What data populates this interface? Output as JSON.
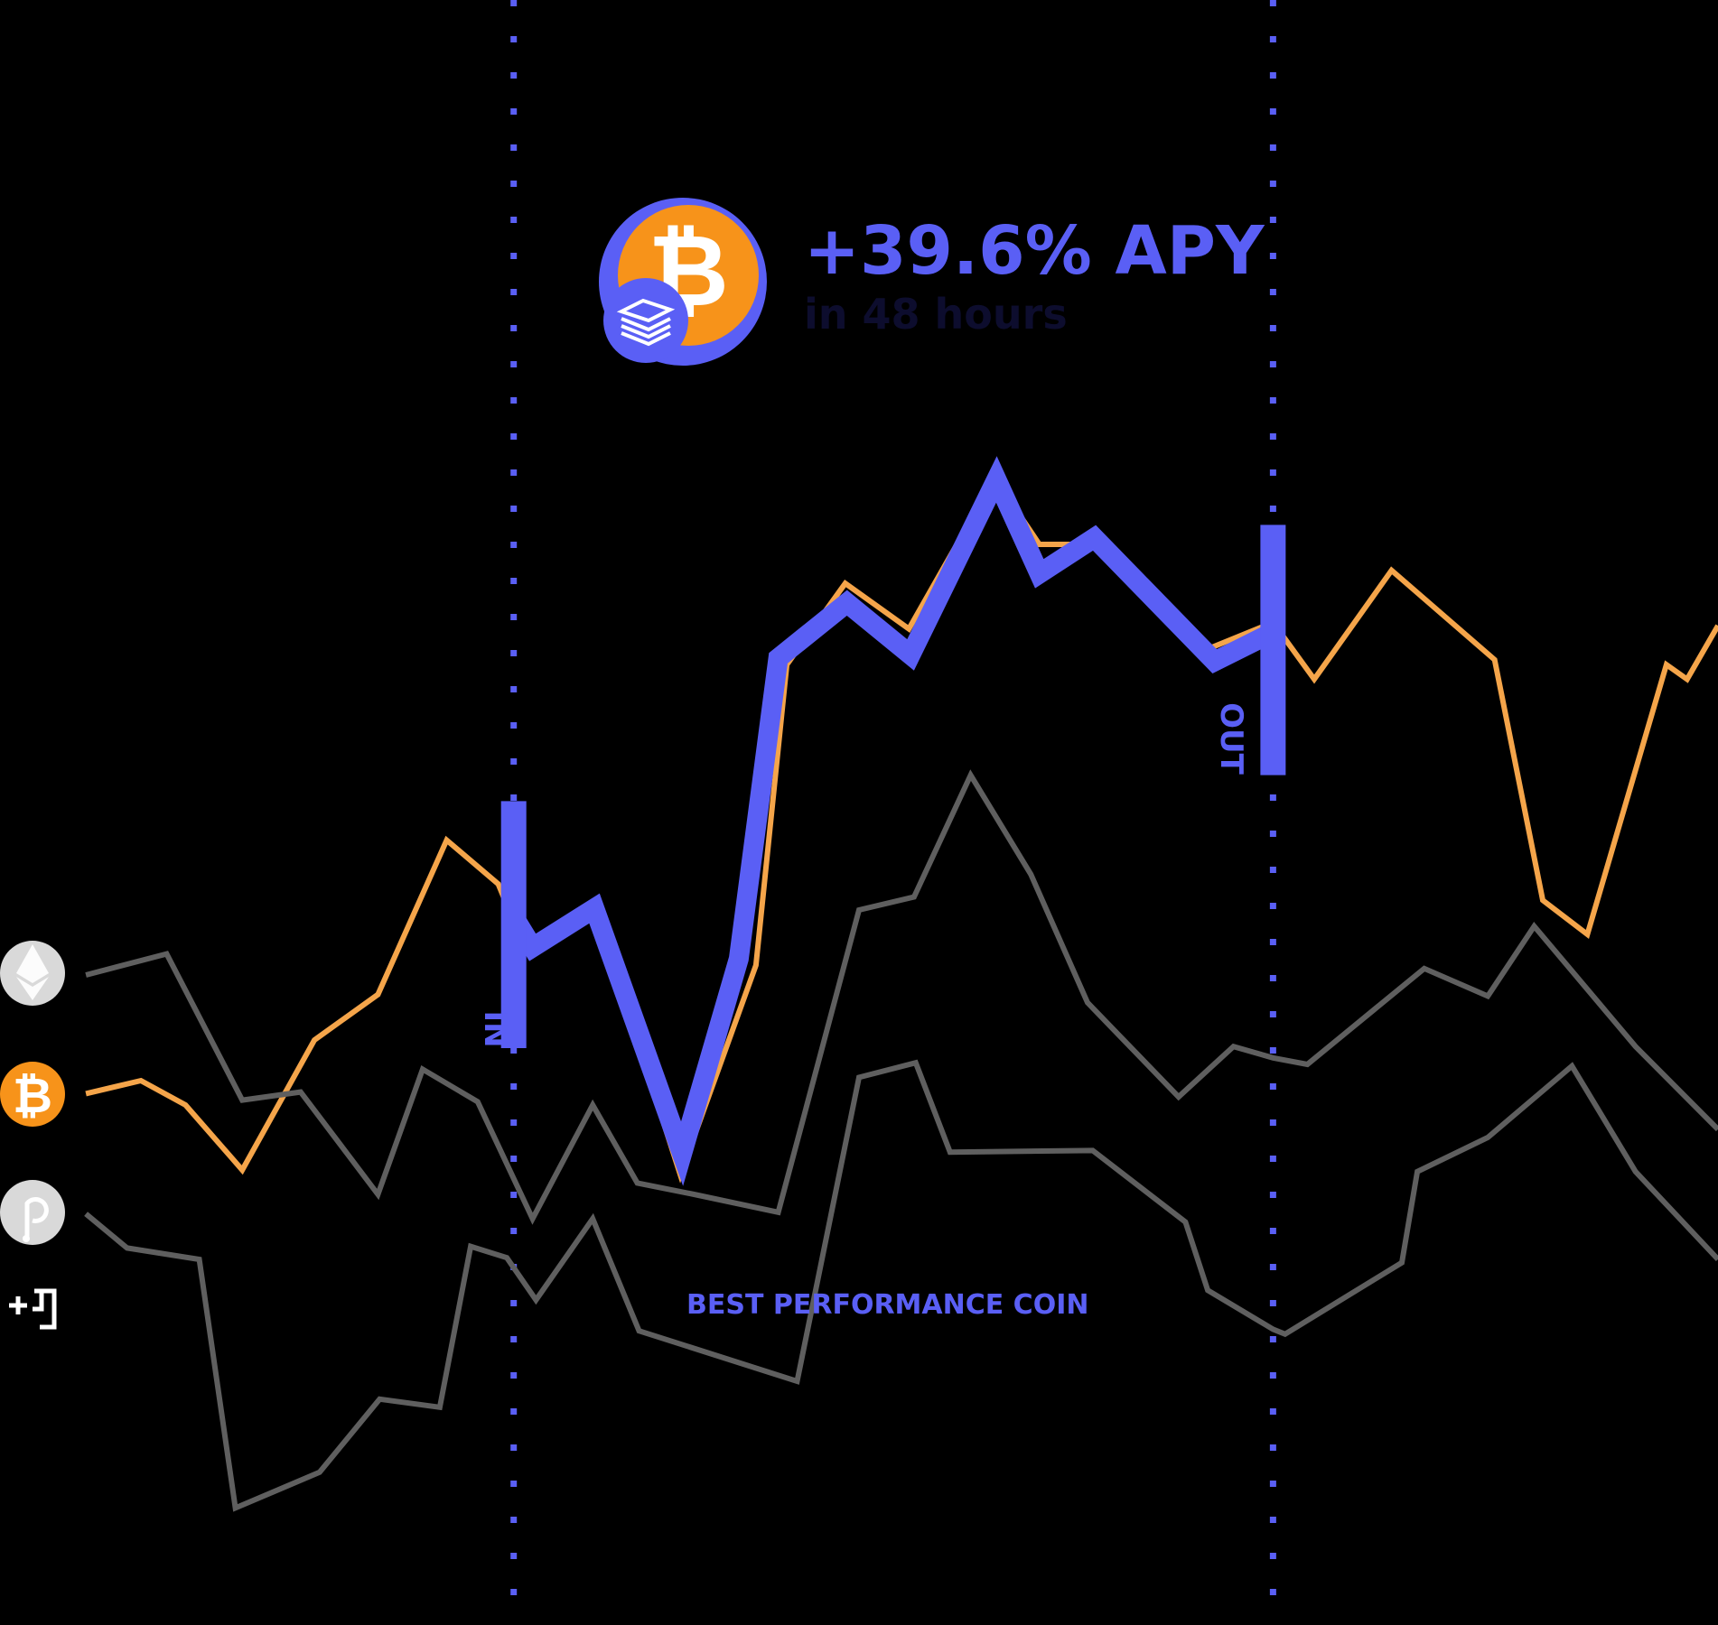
{
  "headline": {
    "value": "+39.6% APY",
    "subtitle": "in 48 hours"
  },
  "best_label": "BEST PERFORMANCE COIN",
  "marker_in": "IN",
  "marker_out": "OUT",
  "legend": [
    {
      "icon": "ethereum-icon",
      "color": "#d9d9d9"
    },
    {
      "icon": "bitcoin-icon",
      "color": "#f7931a"
    },
    {
      "icon": "polkadot-icon",
      "color": "#d9d9d9"
    },
    {
      "icon": "more-coins-icon",
      "color": "#ffffff"
    }
  ],
  "colors": {
    "background": "#000000",
    "accent": "#5a5ff5",
    "bitcoin": "#f7931a",
    "bitcoin_line": "#f5a54a",
    "gray_line": "#5f5f5f",
    "headline_sub": "#0d0d2e"
  },
  "chart_data": {
    "type": "line",
    "xlim": [
      0,
      1
    ],
    "ylim": [
      0,
      1
    ],
    "grid": false,
    "entry_x": 0.299,
    "exit_x": 0.741,
    "series": [
      {
        "color": "#f5a54a",
        "role": "bitcoin",
        "points": [
          [
            0.05,
            0.327
          ],
          [
            0.082,
            0.335
          ],
          [
            0.108,
            0.32
          ],
          [
            0.141,
            0.28
          ],
          [
            0.183,
            0.36
          ],
          [
            0.22,
            0.388
          ],
          [
            0.26,
            0.483
          ],
          [
            0.29,
            0.456
          ],
          [
            0.304,
            0.42
          ],
          [
            0.347,
            0.438
          ],
          [
            0.396,
            0.277
          ],
          [
            0.44,
            0.406
          ],
          [
            0.458,
            0.591
          ],
          [
            0.492,
            0.641
          ],
          [
            0.529,
            0.613
          ],
          [
            0.579,
            0.706
          ],
          [
            0.605,
            0.665
          ],
          [
            0.636,
            0.665
          ],
          [
            0.704,
            0.601
          ],
          [
            0.741,
            0.617
          ],
          [
            0.765,
            0.582
          ],
          [
            0.81,
            0.649
          ],
          [
            0.87,
            0.594
          ],
          [
            0.898,
            0.446
          ],
          [
            0.924,
            0.425
          ],
          [
            0.97,
            0.591
          ],
          [
            0.982,
            0.582
          ],
          [
            1.0,
            0.615
          ]
        ]
      },
      {
        "color": "#5f5f5f",
        "role": "ethereum",
        "points": [
          [
            0.05,
            0.4
          ],
          [
            0.097,
            0.413
          ],
          [
            0.141,
            0.323
          ],
          [
            0.175,
            0.328
          ],
          [
            0.22,
            0.265
          ],
          [
            0.246,
            0.342
          ],
          [
            0.278,
            0.322
          ],
          [
            0.31,
            0.25
          ],
          [
            0.345,
            0.32
          ],
          [
            0.371,
            0.272
          ],
          [
            0.404,
            0.265
          ],
          [
            0.453,
            0.254
          ],
          [
            0.5,
            0.44
          ],
          [
            0.532,
            0.448
          ],
          [
            0.565,
            0.523
          ],
          [
            0.6,
            0.462
          ],
          [
            0.633,
            0.383
          ],
          [
            0.686,
            0.325
          ],
          [
            0.718,
            0.356
          ],
          [
            0.741,
            0.349
          ],
          [
            0.761,
            0.345
          ],
          [
            0.829,
            0.404
          ],
          [
            0.866,
            0.387
          ],
          [
            0.893,
            0.43
          ],
          [
            0.952,
            0.356
          ],
          [
            1.0,
            0.305
          ]
        ]
      },
      {
        "color": "#5f5f5f",
        "role": "polkadot",
        "points": [
          [
            0.05,
            0.253
          ],
          [
            0.074,
            0.232
          ],
          [
            0.116,
            0.225
          ],
          [
            0.137,
            0.072
          ],
          [
            0.186,
            0.094
          ],
          [
            0.221,
            0.139
          ],
          [
            0.256,
            0.134
          ],
          [
            0.274,
            0.233
          ],
          [
            0.295,
            0.226
          ],
          [
            0.312,
            0.2
          ],
          [
            0.345,
            0.25
          ],
          [
            0.372,
            0.181
          ],
          [
            0.464,
            0.15
          ],
          [
            0.5,
            0.337
          ],
          [
            0.533,
            0.346
          ],
          [
            0.553,
            0.291
          ],
          [
            0.636,
            0.292
          ],
          [
            0.69,
            0.248
          ],
          [
            0.703,
            0.206
          ],
          [
            0.741,
            0.182
          ],
          [
            0.748,
            0.179
          ],
          [
            0.816,
            0.223
          ],
          [
            0.825,
            0.279
          ],
          [
            0.866,
            0.3
          ],
          [
            0.915,
            0.344
          ],
          [
            0.952,
            0.279
          ],
          [
            1.0,
            0.225
          ]
        ]
      },
      {
        "color": "#5a5ff5",
        "role": "best-performance-coin",
        "points": [
          [
            0.299,
            0.436
          ],
          [
            0.31,
            0.417
          ],
          [
            0.346,
            0.441
          ],
          [
            0.397,
            0.29
          ],
          [
            0.43,
            0.41
          ],
          [
            0.453,
            0.595
          ],
          [
            0.493,
            0.629
          ],
          [
            0.53,
            0.597
          ],
          [
            0.58,
            0.705
          ],
          [
            0.605,
            0.647
          ],
          [
            0.637,
            0.669
          ],
          [
            0.707,
            0.593
          ],
          [
            0.741,
            0.611
          ]
        ]
      }
    ]
  }
}
